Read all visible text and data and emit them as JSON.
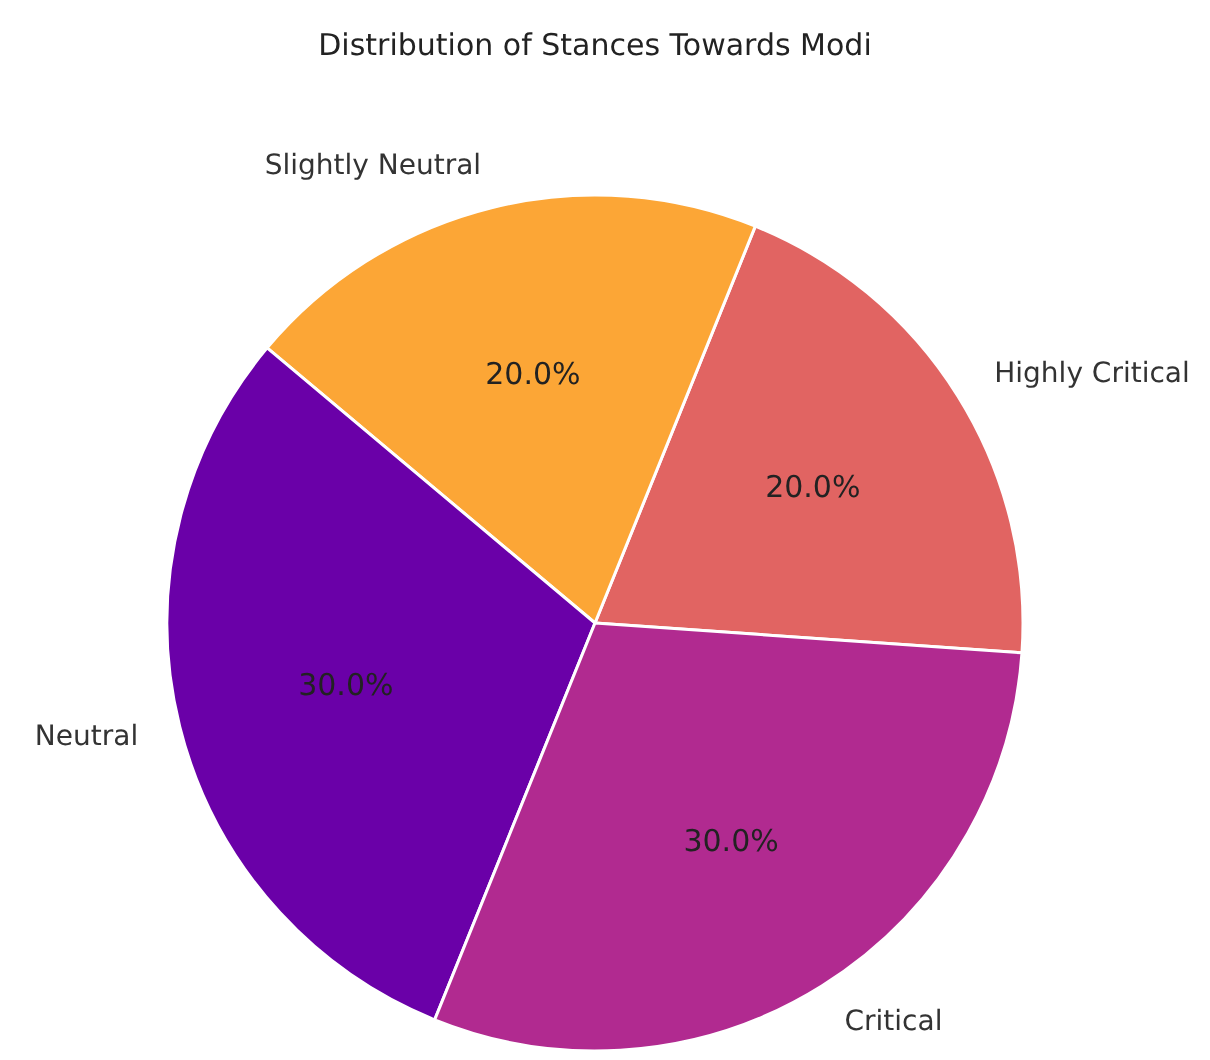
{
  "chart_data": {
    "type": "pie",
    "title": "Distribution of Stances Towards Modi",
    "categories": [
      "Highly Critical",
      "Slightly Neutral",
      "Neutral",
      "Critical"
    ],
    "values": [
      20,
      20,
      30,
      30
    ],
    "colors": [
      "#e16462",
      "#fca636",
      "#6a00a8",
      "#b12a90"
    ],
    "value_labels": [
      "20.0%",
      "20.0%",
      "30.0%",
      "30.0%"
    ]
  }
}
